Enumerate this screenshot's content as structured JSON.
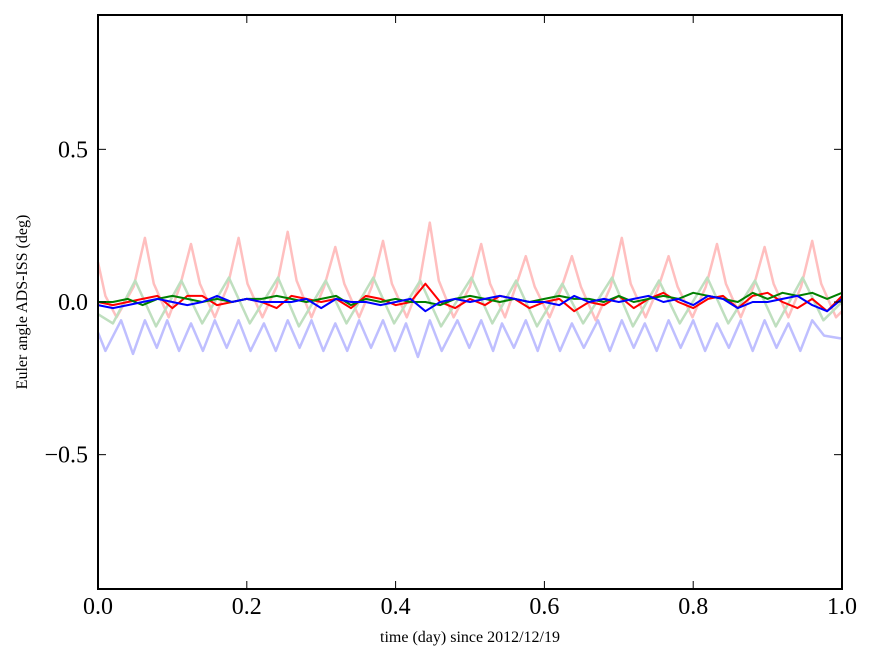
{
  "chart_data": {
    "type": "line",
    "title": "",
    "xlabel": "time (day) since 2012/12/19",
    "ylabel": "Euler angle ADS-ISS (deg)",
    "xlim": [
      0.0,
      1.0
    ],
    "ylim": [
      -0.94,
      0.94
    ],
    "xticks": [
      0.0,
      0.2,
      0.4,
      0.6,
      0.8,
      1.0
    ],
    "xtick_labels": [
      "0.0",
      "0.2",
      "0.4",
      "0.6",
      "0.8",
      "1.0"
    ],
    "yticks": [
      0.5,
      0.0,
      -0.5
    ],
    "ytick_labels": [
      "0.5",
      "0.0",
      "−0.5"
    ],
    "grid": false,
    "legend": "none",
    "series": [
      {
        "color": "#ffbfbf",
        "x": [
          0,
          0.01,
          0.025,
          0.048,
          0.063,
          0.075,
          0.095,
          0.11,
          0.125,
          0.137,
          0.157,
          0.174,
          0.189,
          0.201,
          0.221,
          0.24,
          0.255,
          0.267,
          0.287,
          0.304,
          0.319,
          0.331,
          0.351,
          0.368,
          0.383,
          0.395,
          0.415,
          0.431,
          0.446,
          0.458,
          0.478,
          0.5,
          0.515,
          0.527,
          0.547,
          0.56,
          0.575,
          0.587,
          0.607,
          0.622,
          0.637,
          0.649,
          0.669,
          0.689,
          0.704,
          0.716,
          0.736,
          0.752,
          0.767,
          0.779,
          0.799,
          0.817,
          0.832,
          0.844,
          0.864,
          0.881,
          0.896,
          0.908,
          0.928,
          0.945,
          0.96,
          0.972,
          0.992,
          1.0
        ],
        "y": [
          0.13,
          0.02,
          -0.05,
          0.05,
          0.21,
          0.06,
          -0.05,
          0.05,
          0.19,
          0.06,
          -0.05,
          0.05,
          0.21,
          0.06,
          -0.05,
          0.05,
          0.23,
          0.07,
          -0.05,
          0.05,
          0.18,
          0.06,
          -0.05,
          0.05,
          0.2,
          0.06,
          -0.05,
          0.05,
          0.26,
          0.07,
          -0.05,
          0.05,
          0.19,
          0.06,
          -0.05,
          0.04,
          0.15,
          0.05,
          -0.05,
          0.04,
          0.15,
          0.05,
          -0.06,
          0.05,
          0.21,
          0.06,
          -0.05,
          0.04,
          0.15,
          0.05,
          -0.05,
          0.05,
          0.19,
          0.06,
          -0.05,
          0.05,
          0.18,
          0.06,
          -0.05,
          0.05,
          0.2,
          0.06,
          -0.05,
          -0.03
        ]
      },
      {
        "color": "#bfdfbf",
        "x": [
          0,
          0.02,
          0.05,
          0.078,
          0.112,
          0.14,
          0.176,
          0.204,
          0.242,
          0.27,
          0.306,
          0.334,
          0.37,
          0.398,
          0.433,
          0.461,
          0.502,
          0.53,
          0.562,
          0.59,
          0.624,
          0.652,
          0.691,
          0.719,
          0.754,
          0.782,
          0.819,
          0.847,
          0.883,
          0.911,
          0.947,
          0.975,
          1.0
        ],
        "y": [
          -0.04,
          -0.07,
          0.07,
          -0.08,
          0.07,
          -0.07,
          0.08,
          -0.07,
          0.08,
          -0.08,
          0.07,
          -0.07,
          0.08,
          -0.07,
          0.07,
          -0.08,
          0.08,
          -0.07,
          0.07,
          -0.08,
          0.06,
          -0.07,
          0.08,
          -0.08,
          0.07,
          -0.07,
          0.08,
          -0.07,
          0.07,
          -0.08,
          0.08,
          -0.06,
          0.0
        ]
      },
      {
        "color": "#bfbfff",
        "x": [
          0,
          0.01,
          0.031,
          0.047,
          0.063,
          0.079,
          0.093,
          0.109,
          0.125,
          0.141,
          0.157,
          0.173,
          0.189,
          0.205,
          0.223,
          0.239,
          0.255,
          0.271,
          0.287,
          0.303,
          0.319,
          0.335,
          0.351,
          0.367,
          0.383,
          0.399,
          0.414,
          0.43,
          0.446,
          0.462,
          0.483,
          0.499,
          0.515,
          0.531,
          0.543,
          0.559,
          0.575,
          0.591,
          0.605,
          0.621,
          0.637,
          0.653,
          0.672,
          0.688,
          0.704,
          0.72,
          0.735,
          0.751,
          0.767,
          0.783,
          0.8,
          0.816,
          0.832,
          0.848,
          0.864,
          0.88,
          0.896,
          0.912,
          0.928,
          0.944,
          0.96,
          0.976,
          1.0
        ],
        "y": [
          -0.1,
          -0.16,
          -0.06,
          -0.17,
          -0.06,
          -0.15,
          -0.06,
          -0.16,
          -0.07,
          -0.16,
          -0.06,
          -0.15,
          -0.06,
          -0.16,
          -0.07,
          -0.16,
          -0.06,
          -0.15,
          -0.06,
          -0.16,
          -0.07,
          -0.16,
          -0.06,
          -0.15,
          -0.06,
          -0.16,
          -0.07,
          -0.18,
          -0.06,
          -0.16,
          -0.06,
          -0.15,
          -0.06,
          -0.16,
          -0.07,
          -0.15,
          -0.06,
          -0.16,
          -0.06,
          -0.16,
          -0.07,
          -0.15,
          -0.06,
          -0.16,
          -0.06,
          -0.15,
          -0.07,
          -0.16,
          -0.06,
          -0.15,
          -0.06,
          -0.16,
          -0.07,
          -0.15,
          -0.06,
          -0.16,
          -0.06,
          -0.15,
          -0.07,
          -0.16,
          -0.06,
          -0.11,
          -0.12
        ]
      },
      {
        "color": "#ff0000",
        "x": [
          0,
          0.02,
          0.04,
          0.06,
          0.08,
          0.1,
          0.12,
          0.14,
          0.16,
          0.18,
          0.2,
          0.22,
          0.24,
          0.26,
          0.28,
          0.3,
          0.32,
          0.34,
          0.36,
          0.38,
          0.4,
          0.42,
          0.44,
          0.46,
          0.48,
          0.5,
          0.52,
          0.54,
          0.56,
          0.58,
          0.6,
          0.62,
          0.64,
          0.66,
          0.68,
          0.7,
          0.72,
          0.74,
          0.76,
          0.78,
          0.8,
          0.82,
          0.84,
          0.86,
          0.88,
          0.9,
          0.92,
          0.94,
          0.96,
          0.98,
          1.0
        ],
        "y": [
          0.0,
          -0.01,
          0.0,
          0.01,
          0.02,
          -0.02,
          0.02,
          0.02,
          -0.01,
          0.0,
          0.01,
          0.0,
          -0.02,
          0.02,
          0.01,
          0.0,
          0.01,
          -0.02,
          0.02,
          0.01,
          -0.01,
          0.0,
          0.06,
          0.0,
          -0.02,
          0.01,
          -0.01,
          0.02,
          0.01,
          -0.02,
          0.0,
          0.01,
          -0.03,
          0.0,
          -0.01,
          0.02,
          -0.02,
          0.01,
          0.03,
          0.0,
          -0.02,
          0.01,
          0.02,
          -0.02,
          0.02,
          0.03,
          0.0,
          -0.02,
          0.01,
          -0.03,
          0.02
        ]
      },
      {
        "color": "#008000",
        "x": [
          0,
          0.02,
          0.04,
          0.06,
          0.08,
          0.1,
          0.12,
          0.14,
          0.16,
          0.18,
          0.2,
          0.22,
          0.24,
          0.26,
          0.28,
          0.3,
          0.32,
          0.34,
          0.36,
          0.38,
          0.4,
          0.42,
          0.44,
          0.46,
          0.48,
          0.5,
          0.52,
          0.54,
          0.56,
          0.58,
          0.6,
          0.62,
          0.64,
          0.66,
          0.68,
          0.7,
          0.72,
          0.74,
          0.76,
          0.78,
          0.8,
          0.82,
          0.84,
          0.86,
          0.88,
          0.9,
          0.92,
          0.94,
          0.96,
          0.98,
          1.0
        ],
        "y": [
          0.0,
          0.0,
          0.01,
          -0.01,
          0.01,
          0.02,
          0.01,
          0.0,
          0.01,
          0.0,
          0.01,
          0.01,
          0.02,
          0.01,
          0.0,
          0.01,
          0.02,
          -0.01,
          0.01,
          0.0,
          0.01,
          0.0,
          0.0,
          -0.01,
          0.01,
          0.02,
          0.01,
          0.0,
          0.01,
          0.0,
          0.01,
          0.02,
          0.01,
          0.01,
          0.0,
          0.02,
          0.0,
          0.01,
          0.02,
          0.01,
          0.03,
          0.02,
          0.01,
          0.0,
          0.03,
          0.01,
          0.03,
          0.02,
          0.03,
          0.01,
          0.03
        ]
      },
      {
        "color": "#0000ff",
        "x": [
          0,
          0.02,
          0.04,
          0.06,
          0.08,
          0.1,
          0.12,
          0.14,
          0.16,
          0.18,
          0.2,
          0.22,
          0.24,
          0.26,
          0.28,
          0.3,
          0.32,
          0.34,
          0.36,
          0.38,
          0.4,
          0.42,
          0.44,
          0.46,
          0.48,
          0.5,
          0.52,
          0.54,
          0.56,
          0.58,
          0.6,
          0.62,
          0.64,
          0.66,
          0.68,
          0.7,
          0.72,
          0.74,
          0.76,
          0.78,
          0.8,
          0.82,
          0.84,
          0.86,
          0.88,
          0.9,
          0.92,
          0.94,
          0.96,
          0.98,
          1.0
        ],
        "y": [
          -0.01,
          -0.02,
          -0.01,
          0.0,
          0.01,
          0.0,
          -0.01,
          0.0,
          0.02,
          0.0,
          0.01,
          0.0,
          0.0,
          0.0,
          0.01,
          -0.02,
          0.01,
          0.0,
          0.0,
          -0.01,
          0.0,
          0.01,
          -0.03,
          0.0,
          0.01,
          0.0,
          0.01,
          0.02,
          0.01,
          0.0,
          0.0,
          -0.01,
          0.02,
          0.0,
          0.01,
          0.0,
          0.01,
          0.02,
          0.0,
          0.01,
          -0.01,
          0.02,
          0.01,
          -0.02,
          0.0,
          0.0,
          0.01,
          0.02,
          -0.01,
          -0.03,
          0.01
        ]
      }
    ]
  }
}
